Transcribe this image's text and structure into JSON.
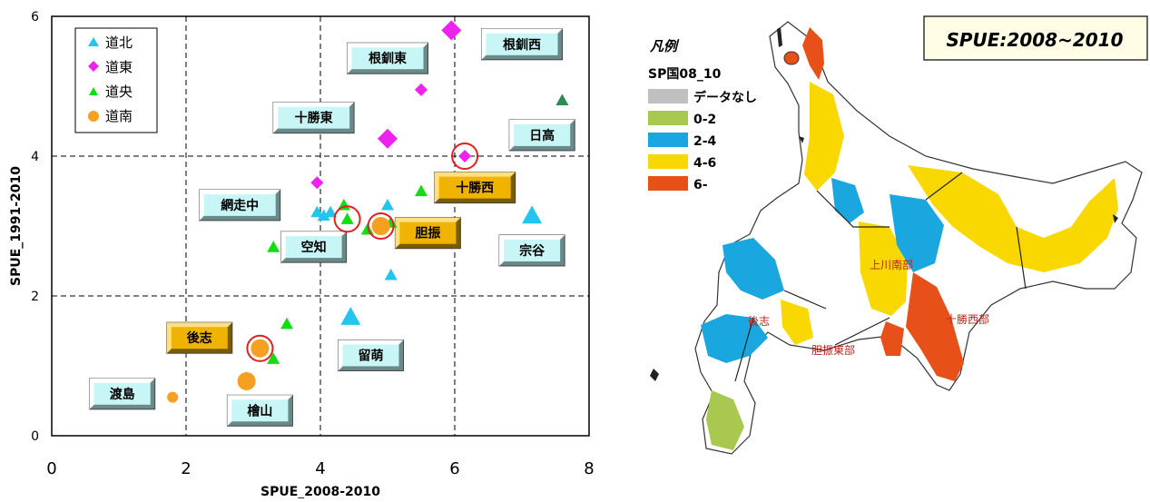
{
  "chart_data": {
    "type": "scatter",
    "xlabel": "SPUE_2008-2010",
    "ylabel": "SPUE_1991-2010",
    "xlim": [
      0,
      8
    ],
    "ylim": [
      0,
      6
    ],
    "xticks": [
      "0",
      "2",
      "4",
      "6",
      "8"
    ],
    "yticks": [
      "0",
      "2",
      "4",
      "6"
    ],
    "grid": "dashed at 2,4,6 (x) and 2,4 (y)",
    "legend_position": "top-left",
    "series": [
      {
        "name": "道北",
        "marker": "triangle",
        "color": "#22c5ee",
        "points": [
          [
            3.95,
            3.2
          ],
          [
            4.05,
            3.15
          ],
          [
            4.15,
            3.2
          ],
          [
            5.0,
            3.3
          ],
          [
            5.05,
            2.3
          ],
          [
            4.45,
            1.7
          ],
          [
            7.15,
            3.15
          ]
        ]
      },
      {
        "name": "道東",
        "marker": "diamond",
        "color": "#ee22ee",
        "points": [
          [
            3.95,
            3.62
          ],
          [
            5.0,
            4.25
          ],
          [
            5.5,
            4.95
          ],
          [
            5.95,
            5.8
          ],
          [
            6.15,
            4.0
          ]
        ]
      },
      {
        "name": "道央",
        "marker": "triangle",
        "color": "#11dd11",
        "points": [
          [
            3.3,
            2.7
          ],
          [
            3.5,
            1.6
          ],
          [
            3.3,
            1.1
          ],
          [
            4.35,
            3.3
          ],
          [
            4.4,
            3.1
          ],
          [
            4.7,
            2.95
          ],
          [
            5.05,
            3.05
          ],
          [
            5.5,
            3.5
          ],
          [
            7.6,
            4.8
          ]
        ]
      },
      {
        "name": "道南",
        "marker": "circle",
        "color": "#f5a020",
        "points": [
          [
            1.8,
            0.55
          ],
          [
            2.9,
            0.78
          ],
          [
            3.1,
            1.25
          ],
          [
            4.9,
            3.0
          ]
        ]
      }
    ],
    "highlighted_points": [
      [
        6.15,
        4.0
      ],
      [
        4.4,
        3.1
      ],
      [
        4.9,
        3.0
      ],
      [
        3.1,
        1.25
      ]
    ],
    "region_labels": [
      {
        "text": "根釧東",
        "x": 5.0,
        "y": 5.4,
        "style": "cyan"
      },
      {
        "text": "根釧西",
        "x": 7.0,
        "y": 5.6,
        "style": "cyan"
      },
      {
        "text": "十勝東",
        "x": 3.9,
        "y": 4.55,
        "style": "cyan"
      },
      {
        "text": "日高",
        "x": 7.3,
        "y": 4.3,
        "style": "cyan"
      },
      {
        "text": "十勝西",
        "x": 6.3,
        "y": 3.55,
        "style": "gold"
      },
      {
        "text": "網走中",
        "x": 2.8,
        "y": 3.3,
        "style": "cyan"
      },
      {
        "text": "空知",
        "x": 3.9,
        "y": 2.7,
        "style": "cyan"
      },
      {
        "text": "胆振",
        "x": 5.6,
        "y": 2.9,
        "style": "gold"
      },
      {
        "text": "宗谷",
        "x": 7.15,
        "y": 2.65,
        "style": "cyan"
      },
      {
        "text": "後志",
        "x": 2.2,
        "y": 1.4,
        "style": "gold"
      },
      {
        "text": "留萌",
        "x": 4.75,
        "y": 1.15,
        "style": "cyan"
      },
      {
        "text": "渡島",
        "x": 1.05,
        "y": 0.6,
        "style": "cyan"
      },
      {
        "text": "檜山",
        "x": 3.1,
        "y": 0.36,
        "style": "cyan"
      }
    ]
  },
  "map": {
    "title": "SPUE:2008~2010",
    "legend_title": "凡例",
    "legend_field": "SP国08_10",
    "legend_items": [
      {
        "label": "データなし",
        "color": "#c0c0c0"
      },
      {
        "label": "0-2",
        "color": "#a8c850"
      },
      {
        "label": "2-4",
        "color": "#1aa7e0"
      },
      {
        "label": "4-6",
        "color": "#f8d800"
      },
      {
        "label": "6-",
        "color": "#e8501a"
      }
    ],
    "area_labels": [
      "上川南部",
      "後志",
      "十勝西部",
      "胆振東部"
    ]
  }
}
